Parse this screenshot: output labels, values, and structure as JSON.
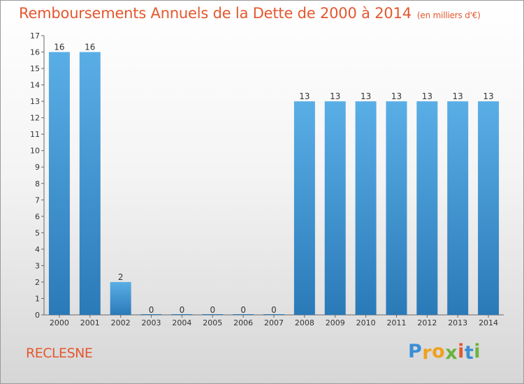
{
  "chart_data": {
    "type": "bar",
    "title": "Remboursements Annuels de la Dette de 2000 à 2014",
    "unit_note": "(en milliers d'€)",
    "categories": [
      "2000",
      "2001",
      "2002",
      "2003",
      "2004",
      "2005",
      "2006",
      "2007",
      "2008",
      "2009",
      "2010",
      "2011",
      "2012",
      "2013",
      "2014"
    ],
    "values": [
      16,
      16,
      2,
      0,
      0,
      0,
      0,
      0,
      13,
      13,
      13,
      13,
      13,
      13,
      13
    ],
    "ylim": [
      0,
      17
    ],
    "yticks": [
      0,
      1,
      2,
      3,
      4,
      5,
      6,
      7,
      8,
      9,
      10,
      11,
      12,
      13,
      14,
      15,
      16,
      17
    ],
    "xlabel": "",
    "ylabel": "",
    "grid": false,
    "bar_color_top": "#5aaee6",
    "bar_color_bottom": "#2a7ab8"
  },
  "footer": {
    "commune": "RECLESNE",
    "logo_letters": [
      {
        "char": "P",
        "color": "#3a8fd6"
      },
      {
        "char": "r",
        "color": "#f0a020"
      },
      {
        "char": "o",
        "color": "#f0a020"
      },
      {
        "char": "x",
        "color": "#6cb33f"
      },
      {
        "char": "i",
        "color": "#e4572e"
      },
      {
        "char": "t",
        "color": "#3a8fd6"
      },
      {
        "char": "i",
        "color": "#6cb33f"
      }
    ]
  },
  "colors": {
    "title": "#e4572e",
    "axis": "#333333"
  }
}
